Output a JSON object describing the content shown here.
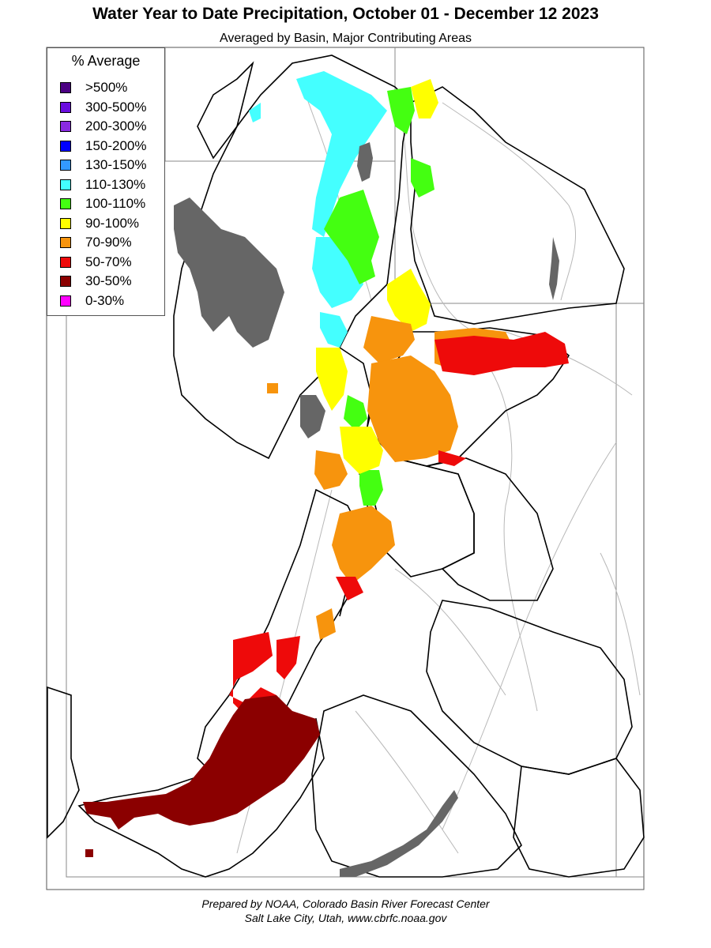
{
  "header": {
    "title": "Water Year to Date Precipitation, October 01  - December 12 2023",
    "subtitle": "Averaged by Basin, Major Contributing Areas"
  },
  "legend": {
    "title": "% Average",
    "items": [
      {
        "label": ">500%",
        "color": "#4b0082"
      },
      {
        "label": "300-500%",
        "color": "#6a0ddf"
      },
      {
        "label": "200-300%",
        "color": "#8a2be2"
      },
      {
        "label": "150-200%",
        "color": "#0000ff"
      },
      {
        "label": "130-150%",
        "color": "#3399ff"
      },
      {
        "label": "110-130%",
        "color": "#44ffff"
      },
      {
        "label": "100-110%",
        "color": "#44ff11"
      },
      {
        "label": "90-100%",
        "color": "#ffff00"
      },
      {
        "label": "70-90%",
        "color": "#f7940d"
      },
      {
        "label": "50-70%",
        "color": "#ee0a0a"
      },
      {
        "label": "30-50%",
        "color": "#8b0000"
      },
      {
        "label": "0-30%",
        "color": "#ff00ff"
      }
    ]
  },
  "map": {
    "lake_color": "#666666",
    "boundary_color": "#000000",
    "river_color": "#b8b8b8",
    "state_line_color": "#888888"
  },
  "footer": {
    "line1": "Prepared by NOAA, Colorado Basin River Forecast Center",
    "line2": "Salt Lake City, Utah, www.cbrfc.noaa.gov"
  }
}
